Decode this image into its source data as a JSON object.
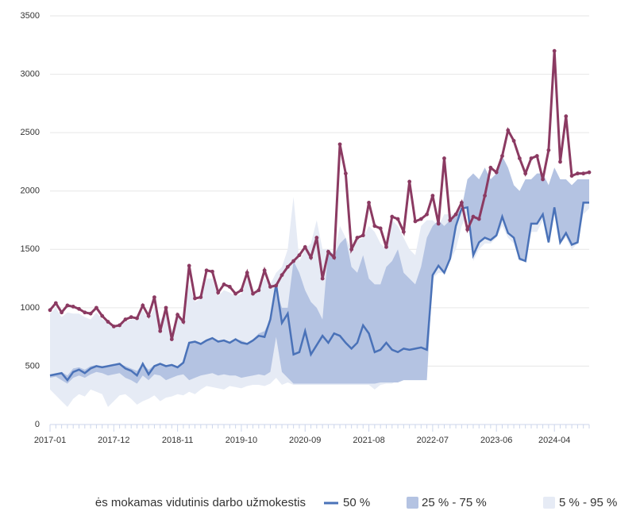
{
  "chart_data": {
    "type": "line",
    "categories": [
      "2017-01",
      null,
      null,
      null,
      null,
      null,
      null,
      null,
      null,
      null,
      null,
      "2017-12",
      null,
      null,
      null,
      null,
      null,
      null,
      null,
      null,
      null,
      null,
      "2018-11",
      null,
      null,
      null,
      null,
      null,
      null,
      null,
      null,
      null,
      null,
      "2019-10",
      null,
      null,
      null,
      null,
      null,
      null,
      null,
      null,
      null,
      null,
      "2020-09",
      null,
      null,
      null,
      null,
      null,
      null,
      null,
      null,
      null,
      null,
      "2021-08",
      null,
      null,
      null,
      null,
      null,
      null,
      null,
      null,
      null,
      null,
      "2022-07",
      null,
      null,
      null,
      null,
      null,
      null,
      null,
      null,
      null,
      null,
      "2023-06",
      null,
      null,
      null,
      null,
      null,
      null,
      null,
      null,
      null,
      "2024-04",
      null,
      null,
      null,
      null,
      null,
      null
    ],
    "ylim": [
      0,
      3500
    ],
    "yticks": [
      0,
      500,
      1000,
      1500,
      2000,
      2500,
      3000,
      3500
    ],
    "grid": true,
    "series": [
      {
        "name": "5 % - 95 %",
        "kind": "band",
        "color": "#e6ebf5",
        "low": [
          300,
          250,
          200,
          150,
          220,
          260,
          240,
          300,
          280,
          260,
          150,
          200,
          250,
          260,
          220,
          170,
          200,
          220,
          250,
          200,
          230,
          240,
          260,
          250,
          280,
          260,
          300,
          330,
          320,
          310,
          300,
          330,
          320,
          310,
          330,
          340,
          340,
          330,
          350,
          400,
          340,
          360,
          340,
          340,
          340,
          340,
          340,
          340,
          340,
          340,
          340,
          340,
          340,
          340,
          340,
          340,
          300,
          340,
          350,
          350,
          380,
          400,
          400,
          400,
          400,
          400,
          1250,
          1300,
          1300,
          1400,
          1500,
          1700,
          1800,
          1400,
          1500,
          1550,
          1550,
          1600,
          1700,
          1600,
          1550,
          1400,
          1400,
          1650,
          1650,
          1750,
          1550,
          1800,
          1550,
          1600,
          1500,
          1550,
          1800,
          1850
        ],
        "high": [
          950,
          1000,
          920,
          960,
          950,
          950,
          920,
          900,
          960,
          900,
          880,
          820,
          850,
          880,
          900,
          900,
          980,
          900,
          1000,
          900,
          950,
          800,
          920,
          900,
          1200,
          1050,
          1080,
          1250,
          1250,
          1100,
          1150,
          1130,
          1100,
          1120,
          1250,
          1100,
          1150,
          1250,
          1200,
          1300,
          1350,
          1500,
          1950,
          1400,
          1500,
          1550,
          1750,
          1500,
          1500,
          1450,
          1700,
          1600,
          1500,
          1580,
          1600,
          1700,
          1650,
          1550,
          1500,
          1750,
          1700,
          1600,
          1500,
          1450,
          1700,
          1750,
          1750,
          1700,
          1800,
          1800,
          1800,
          1850,
          2100,
          2150,
          2100,
          2200,
          2100,
          2150,
          2300,
          2200,
          2050,
          2000,
          2100,
          2100,
          2150,
          2150,
          2050,
          2200,
          2100,
          2100,
          2050,
          2100,
          2100,
          2100
        ]
      },
      {
        "name": "25 % - 75 %",
        "kind": "band",
        "color": "#b4c3e2",
        "low": [
          400,
          410,
          380,
          350,
          400,
          420,
          400,
          430,
          450,
          440,
          420,
          430,
          440,
          400,
          380,
          350,
          420,
          380,
          430,
          420,
          380,
          400,
          420,
          430,
          380,
          400,
          420,
          430,
          440,
          420,
          430,
          420,
          420,
          400,
          410,
          420,
          430,
          420,
          450,
          750,
          450,
          400,
          350,
          350,
          350,
          350,
          350,
          350,
          350,
          350,
          350,
          350,
          350,
          350,
          350,
          350,
          350,
          360,
          360,
          360,
          360,
          380,
          380,
          380,
          380,
          380,
          1280,
          1360,
          1300,
          1420,
          1700,
          1850,
          1860,
          1450,
          1560,
          1600,
          1580,
          1620,
          1780,
          1640,
          1600,
          1420,
          1400,
          1720,
          1720,
          1800,
          1560,
          1860,
          1560,
          1640,
          1540,
          1560,
          1900,
          1900
        ],
        "high": [
          430,
          440,
          450,
          420,
          480,
          490,
          470,
          500,
          510,
          500,
          510,
          520,
          520,
          500,
          480,
          460,
          520,
          470,
          510,
          520,
          510,
          510,
          500,
          530,
          700,
          710,
          700,
          720,
          740,
          720,
          720,
          710,
          730,
          720,
          700,
          730,
          780,
          800,
          900,
          1150,
          1000,
          1000,
          1400,
          1300,
          1150,
          1050,
          1000,
          900,
          1500,
          1450,
          1550,
          1600,
          1350,
          1300,
          1450,
          1250,
          1200,
          1200,
          1350,
          1400,
          1500,
          1300,
          1250,
          1200,
          1350,
          1600,
          1700,
          1750,
          1700,
          1750,
          1800,
          1850,
          2100,
          2150,
          2100,
          2200,
          2100,
          2150,
          2300,
          2200,
          2050,
          2000,
          2100,
          2100,
          2150,
          2150,
          2050,
          2200,
          2100,
          2100,
          2050,
          2100,
          2100,
          2100
        ]
      },
      {
        "name": "50 %",
        "kind": "line",
        "color": "#4a72b8",
        "values": [
          420,
          430,
          440,
          380,
          450,
          470,
          440,
          480,
          500,
          490,
          500,
          510,
          520,
          480,
          460,
          420,
          520,
          430,
          500,
          520,
          500,
          510,
          490,
          530,
          700,
          710,
          690,
          720,
          740,
          710,
          720,
          700,
          730,
          700,
          690,
          720,
          760,
          750,
          900,
          1200,
          870,
          950,
          600,
          620,
          800,
          600,
          680,
          760,
          700,
          780,
          760,
          700,
          650,
          700,
          850,
          780,
          620,
          640,
          700,
          640,
          620,
          650,
          640,
          650,
          660,
          640,
          1280,
          1360,
          1300,
          1420,
          1700,
          1850,
          1860,
          1450,
          1560,
          1600,
          1580,
          1620,
          1780,
          1640,
          1600,
          1420,
          1400,
          1720,
          1720,
          1800,
          1560,
          1860,
          1560,
          1640,
          1540,
          1560,
          1900,
          1900
        ]
      },
      {
        "name": "ės mokamas vidutinis darbo užmokestis",
        "kind": "markers",
        "color": "#8b3a62",
        "values": [
          980,
          1040,
          960,
          1020,
          1010,
          990,
          960,
          950,
          1000,
          930,
          880,
          840,
          850,
          900,
          920,
          910,
          1020,
          930,
          1090,
          800,
          1000,
          730,
          940,
          880,
          1360,
          1080,
          1090,
          1320,
          1310,
          1130,
          1200,
          1180,
          1120,
          1150,
          1300,
          1120,
          1150,
          1320,
          1180,
          1190,
          1280,
          1350,
          1400,
          1450,
          1520,
          1430,
          1600,
          1250,
          1480,
          1430,
          2400,
          2150,
          1500,
          1600,
          1620,
          1900,
          1700,
          1680,
          1520,
          1780,
          1760,
          1650,
          2080,
          1740,
          1760,
          1800,
          1960,
          1720,
          2280,
          1750,
          1800,
          1900,
          1670,
          1780,
          1760,
          1960,
          2200,
          2160,
          2300,
          2520,
          2430,
          2280,
          2150,
          2280,
          2300,
          2100,
          2350,
          3200,
          2250,
          2640,
          2130,
          2150,
          2150,
          2160
        ]
      }
    ]
  }
}
